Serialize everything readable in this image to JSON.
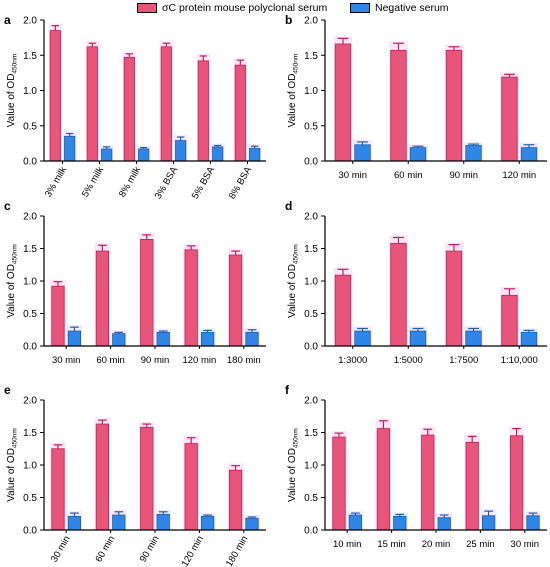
{
  "legend": {
    "items": [
      {
        "label": "σC protein mouse polyclonal serum",
        "color": "#e8557a"
      },
      {
        "label": "Negative serum",
        "color": "#2f86e6"
      }
    ]
  },
  "colors": {
    "series_a": "#e8557a",
    "series_b": "#2f86e6",
    "error_a": "#c21d5c",
    "error_b": "#1a5fb0",
    "glow": "#f3b6e8"
  },
  "chart_data": [
    {
      "panel": "a",
      "type": "bar",
      "ylabel": "Value of OD",
      "ylabel_sub": "450nm",
      "ylim": [
        0,
        2.0
      ],
      "yticks": [
        "0.0",
        "0.5",
        "1.0",
        "1.5",
        "2.0"
      ],
      "categories": [
        "3% milk",
        "5% milk",
        "8% milk",
        "3% BSA",
        "5% BSA",
        "8% BSA"
      ],
      "tick_rotation": 60,
      "series": [
        {
          "values": [
            1.85,
            1.62,
            1.47,
            1.62,
            1.42,
            1.36
          ],
          "errors": [
            0.07,
            0.05,
            0.05,
            0.05,
            0.07,
            0.07
          ]
        },
        {
          "values": [
            0.35,
            0.17,
            0.17,
            0.29,
            0.2,
            0.18
          ],
          "errors": [
            0.04,
            0.03,
            0.02,
            0.05,
            0.02,
            0.03
          ]
        }
      ]
    },
    {
      "panel": "b",
      "type": "bar",
      "ylabel": "Value of OD",
      "ylabel_sub": "450nm",
      "ylim": [
        0,
        2.0
      ],
      "yticks": [
        "0.0",
        "0.5",
        "1.0",
        "1.5",
        "2.0"
      ],
      "categories": [
        "30 min",
        "60 min",
        "90 min",
        "120 min"
      ],
      "tick_rotation": 0,
      "series": [
        {
          "values": [
            1.66,
            1.57,
            1.57,
            1.19
          ],
          "errors": [
            0.08,
            0.1,
            0.05,
            0.04
          ]
        },
        {
          "values": [
            0.23,
            0.19,
            0.22,
            0.19
          ],
          "errors": [
            0.04,
            0.02,
            0.02,
            0.04
          ]
        }
      ]
    },
    {
      "panel": "c",
      "type": "bar",
      "ylabel": "Value of OD",
      "ylabel_sub": "450nm",
      "ylim": [
        0,
        2.0
      ],
      "yticks": [
        "0.0",
        "0.5",
        "1.0",
        "1.5",
        "2.0"
      ],
      "categories": [
        "30 min",
        "60 min",
        "90 min",
        "120 min",
        "180 min"
      ],
      "tick_rotation": 0,
      "series": [
        {
          "values": [
            0.92,
            1.46,
            1.64,
            1.48,
            1.4
          ],
          "errors": [
            0.07,
            0.09,
            0.07,
            0.06,
            0.06
          ]
        },
        {
          "values": [
            0.23,
            0.19,
            0.21,
            0.21,
            0.21
          ],
          "errors": [
            0.06,
            0.02,
            0.02,
            0.03,
            0.04
          ]
        }
      ]
    },
    {
      "panel": "d",
      "type": "bar",
      "ylabel": "Value of OD",
      "ylabel_sub": "450nm",
      "ylim": [
        0,
        2.0
      ],
      "yticks": [
        "0.0",
        "0.5",
        "1.0",
        "1.5",
        "2.0"
      ],
      "categories": [
        "1:3000",
        "1:5000",
        "1:7500",
        "1:10,000"
      ],
      "tick_rotation": 0,
      "series": [
        {
          "values": [
            1.09,
            1.58,
            1.46,
            0.78
          ],
          "errors": [
            0.09,
            0.09,
            0.1,
            0.1
          ]
        },
        {
          "values": [
            0.23,
            0.23,
            0.23,
            0.21
          ],
          "errors": [
            0.04,
            0.04,
            0.04,
            0.03
          ]
        }
      ]
    },
    {
      "panel": "e",
      "type": "bar",
      "ylabel": "Value of OD",
      "ylabel_sub": "450nm",
      "ylim": [
        0,
        2.0
      ],
      "yticks": [
        "0.0",
        "0.5",
        "1.0",
        "1.5",
        "2.0"
      ],
      "categories": [
        "30 min",
        "60 min",
        "90 min",
        "120 min",
        "180 min"
      ],
      "tick_rotation": 60,
      "series": [
        {
          "values": [
            1.25,
            1.63,
            1.58,
            1.33,
            0.92
          ],
          "errors": [
            0.06,
            0.06,
            0.05,
            0.09,
            0.07
          ]
        },
        {
          "values": [
            0.21,
            0.23,
            0.24,
            0.21,
            0.18
          ],
          "errors": [
            0.05,
            0.05,
            0.04,
            0.02,
            0.02
          ]
        }
      ]
    },
    {
      "panel": "f",
      "type": "bar",
      "ylabel": "Value of OD",
      "ylabel_sub": "450nm",
      "ylim": [
        0,
        2.0
      ],
      "yticks": [
        "0.0",
        "0.5",
        "1.0",
        "1.5",
        "2.0"
      ],
      "categories": [
        "10 min",
        "15 min",
        "20 min",
        "25 min",
        "30 min"
      ],
      "tick_rotation": 0,
      "series": [
        {
          "values": [
            1.43,
            1.56,
            1.46,
            1.35,
            1.45
          ],
          "errors": [
            0.06,
            0.12,
            0.09,
            0.09,
            0.11
          ]
        },
        {
          "values": [
            0.23,
            0.21,
            0.19,
            0.22,
            0.22
          ],
          "errors": [
            0.03,
            0.03,
            0.04,
            0.07,
            0.04
          ]
        }
      ]
    }
  ]
}
